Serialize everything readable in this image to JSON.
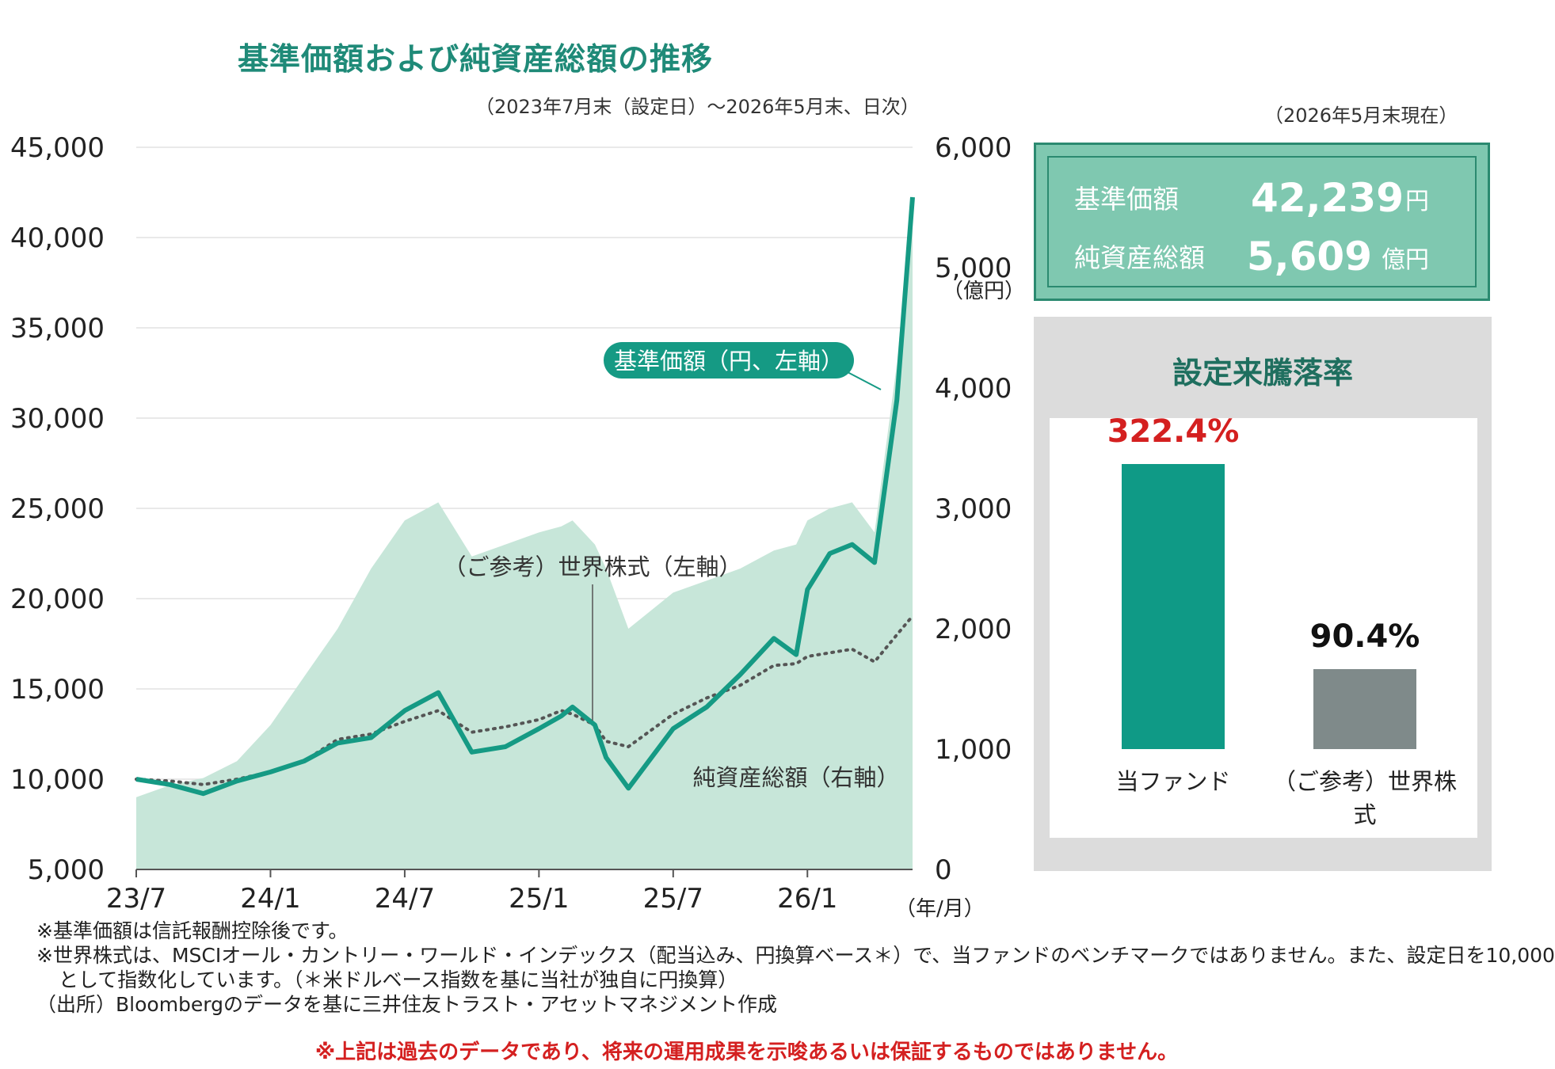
{
  "title": "基準価額および純資産総額の推移",
  "subtitle": "（2023年7月末（設定日）～2026年5月末、日次）",
  "as_of": "（2026年5月末現在）",
  "colors": {
    "fund": "#159a84",
    "benchmark": "#555555",
    "assets_fill": "#c7e6d9",
    "panel_accent": "#1f8a78",
    "fund_bar": "#0f9a86",
    "benchmark_bar": "#7f8a8a",
    "red": "#d42020"
  },
  "chart_data": {
    "type": "line",
    "x_ticks": [
      "23/7",
      "24/1",
      "24/7",
      "25/1",
      "25/7",
      "26/1"
    ],
    "x_unit": "（年/月）",
    "y_left": {
      "range": [
        5000,
        45000
      ],
      "ticks": [
        "45,000",
        "40,000",
        "35,000",
        "30,000",
        "25,000",
        "20,000",
        "15,000",
        "10,000",
        "5,000"
      ]
    },
    "y_right": {
      "range": [
        0,
        6000
      ],
      "unit": "（億円）",
      "ticks": [
        "6,000",
        "5,000",
        "4,000",
        "3,000",
        "2,000",
        "1,000",
        "0"
      ]
    },
    "grid": true,
    "x_months": [
      0,
      1.5,
      3,
      4.5,
      6,
      7.5,
      9,
      10.5,
      12,
      13.5,
      15,
      16.5,
      18,
      19,
      19.5,
      20.5,
      21,
      22,
      24,
      25.5,
      27,
      28.5,
      29.5,
      30,
      31,
      32,
      33,
      34,
      34.7
    ],
    "series": [
      {
        "name": "基準価額（円、左軸）",
        "axis": "left",
        "style": "solid",
        "values": [
          10000,
          9700,
          9200,
          9900,
          10400,
          11000,
          12000,
          12300,
          13800,
          14800,
          11500,
          11800,
          12800,
          13500,
          14000,
          13000,
          11200,
          9500,
          12800,
          14000,
          15800,
          17800,
          16900,
          20500,
          22500,
          23000,
          22000,
          31000,
          42239
        ]
      },
      {
        "name": "（ご参考）世界株式（左軸）",
        "axis": "left",
        "style": "dotted",
        "values": [
          10000,
          9900,
          9700,
          10000,
          10400,
          11000,
          12200,
          12500,
          13200,
          13800,
          12600,
          12900,
          13300,
          13800,
          13600,
          13000,
          12100,
          11800,
          13600,
          14500,
          15200,
          16300,
          16400,
          16800,
          17000,
          17200,
          16500,
          18000,
          19040
        ]
      },
      {
        "name": "純資産総額（右軸）",
        "axis": "right",
        "style": "area",
        "values": [
          600,
          700,
          760,
          900,
          1200,
          1600,
          2000,
          2500,
          2900,
          3050,
          2600,
          2700,
          2800,
          2850,
          2900,
          2700,
          2500,
          2000,
          2300,
          2400,
          2500,
          2650,
          2700,
          2900,
          3000,
          3050,
          2800,
          4200,
          5609
        ]
      }
    ],
    "annotations": {
      "fund_callout": "基準価額（円、左軸）",
      "benchmark_label": "（ご参考）世界株式（左軸）",
      "assets_label": "純資産総額（右軸）"
    }
  },
  "summary": {
    "nav_label": "基準価額",
    "nav_value": "42,239",
    "nav_unit": "円",
    "assets_label": "純資産総額",
    "assets_value": "5,609",
    "assets_unit": "億円"
  },
  "performance_chart": {
    "type": "bar",
    "title": "設定来騰落率",
    "categories": [
      "当ファンド",
      "（ご参考）世界株式"
    ],
    "values": [
      322.4,
      90.4
    ],
    "value_labels": [
      "322.4%",
      "90.4%"
    ]
  },
  "notes": [
    "※基準価額は信託報酬控除後です。",
    "※世界株式は、MSCIオール・カントリー・ワールド・インデックス（配当込み、円換算ベース＊）で、当ファンドのベンチマークではありません。また、設定日を10,000",
    "として指数化しています。（＊米ドルベース指数を基に当社が独自に円換算）",
    "（出所）Bloombergのデータを基に三井住友トラスト・アセットマネジメント作成"
  ],
  "disclaimer": "※上記は過去のデータであり、将来の運用成果を示唆あるいは保証するものではありません。"
}
